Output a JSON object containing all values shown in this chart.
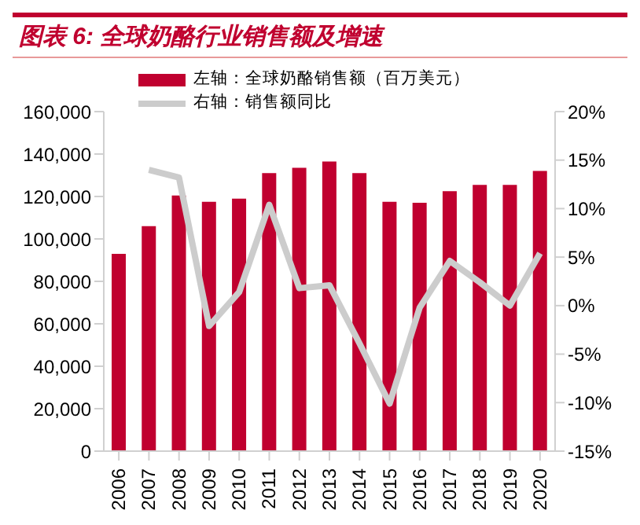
{
  "chart_data": {
    "type": "bar",
    "title": "图表 6: 全球奶酪行业销售额及增速",
    "categories": [
      "2006",
      "2007",
      "2008",
      "2009",
      "2010",
      "2011",
      "2012",
      "2013",
      "2014",
      "2015",
      "2016",
      "2017",
      "2018",
      "2019",
      "2020"
    ],
    "series": [
      {
        "name": "左轴：全球奶酪销售额（百万美元）",
        "color": "#c0002f",
        "values": [
          93000,
          106000,
          120500,
          117500,
          119000,
          131000,
          133500,
          136500,
          131000,
          117500,
          117000,
          122500,
          125500,
          125500,
          132000
        ]
      },
      {
        "name": "右轴：销售额同比",
        "type": "line",
        "axis": "y2",
        "color": "#cccccc",
        "values": [
          null,
          14.0,
          13.2,
          -2.1,
          1.4,
          10.4,
          1.8,
          2.1,
          -3.9,
          -10.1,
          -0.2,
          4.6,
          2.4,
          0.0,
          5.4
        ]
      }
    ],
    "ylim": [
      0,
      160000
    ],
    "yticks": [
      {
        "value": 0,
        "label": "0"
      },
      {
        "value": 20000,
        "label": "20,000"
      },
      {
        "value": 40000,
        "label": "40,000"
      },
      {
        "value": 60000,
        "label": "60,000"
      },
      {
        "value": 80000,
        "label": "80,000"
      },
      {
        "value": 100000,
        "label": "100,000"
      },
      {
        "value": 120000,
        "label": "120,000"
      },
      {
        "value": 140000,
        "label": "140,000"
      },
      {
        "value": 160000,
        "label": "160,000"
      }
    ],
    "y2lim": [
      -15,
      20
    ],
    "y2ticks": [
      {
        "value": -15,
        "label": "-15%"
      },
      {
        "value": -10,
        "label": "-10%"
      },
      {
        "value": -5,
        "label": "-5%"
      },
      {
        "value": 0,
        "label": "0%"
      },
      {
        "value": 5,
        "label": "5%"
      },
      {
        "value": 10,
        "label": "10%"
      },
      {
        "value": 15,
        "label": "15%"
      },
      {
        "value": 20,
        "label": "20%"
      }
    ],
    "legend": "top left",
    "marker": "none"
  }
}
